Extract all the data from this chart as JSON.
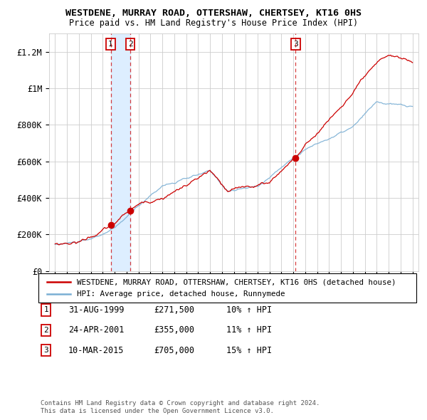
{
  "title": "WESTDENE, MURRAY ROAD, OTTERSHAW, CHERTSEY, KT16 0HS",
  "subtitle": "Price paid vs. HM Land Registry's House Price Index (HPI)",
  "legend_line1": "WESTDENE, MURRAY ROAD, OTTERSHAW, CHERTSEY, KT16 0HS (detached house)",
  "legend_line2": "HPI: Average price, detached house, Runnymede",
  "footer1": "Contains HM Land Registry data © Crown copyright and database right 2024.",
  "footer2": "This data is licensed under the Open Government Licence v3.0.",
  "transactions": [
    {
      "num": 1,
      "date": "31-AUG-1999",
      "price": "271,500",
      "pct": "10%",
      "year": 1999.667
    },
    {
      "num": 2,
      "date": "24-APR-2001",
      "price": "355,000",
      "pct": "11%",
      "year": 2001.31
    },
    {
      "num": 3,
      "date": "10-MAR-2015",
      "price": "705,000",
      "pct": "15%",
      "year": 2015.19
    }
  ],
  "house_color": "#cc0000",
  "hpi_color": "#7bafd4",
  "shade_color": "#ddeeff",
  "background_color": "#ffffff",
  "grid_color": "#cccccc",
  "ylim": [
    0,
    1300000
  ],
  "xlim": [
    1994.5,
    2025.5
  ],
  "yticks": [
    0,
    200000,
    400000,
    600000,
    800000,
    1000000,
    1200000
  ],
  "ytick_labels": [
    "£0",
    "£200K",
    "£400K",
    "£600K",
    "£800K",
    "£1M",
    "£1.2M"
  ],
  "xticks": [
    1995,
    1996,
    1997,
    1998,
    1999,
    2000,
    2001,
    2002,
    2003,
    2004,
    2005,
    2006,
    2007,
    2008,
    2009,
    2010,
    2011,
    2012,
    2013,
    2014,
    2015,
    2016,
    2017,
    2018,
    2019,
    2020,
    2021,
    2022,
    2023,
    2024,
    2025
  ]
}
